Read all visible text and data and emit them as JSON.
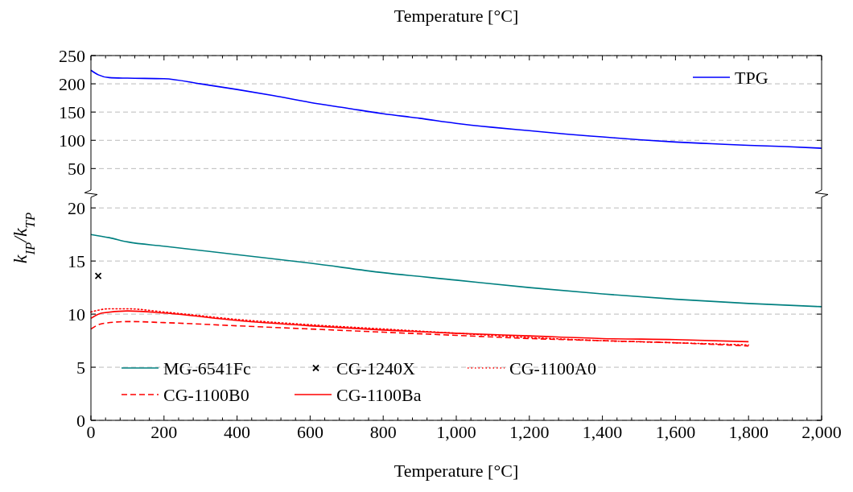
{
  "chart_data": [
    {
      "type": "line",
      "x2label": "Temperature [°C]",
      "xlim": [
        0,
        2000
      ],
      "xticks": [
        0,
        200,
        400,
        600,
        800,
        1000,
        1200,
        1400,
        1600,
        1800,
        2000
      ],
      "ylim": [
        12,
        250
      ],
      "yticks": [
        50,
        100,
        150,
        200,
        250
      ],
      "tick_labels": "y",
      "grid": "y",
      "legend": "top right",
      "line_style": "solid",
      "series": [
        {
          "name": "TPG",
          "color": "#0000ff",
          "x": [
            0,
            20,
            50,
            100,
            200,
            300,
            400,
            500,
            600,
            700,
            800,
            900,
            1000,
            1100,
            1200,
            1300,
            1400,
            1500,
            1600,
            1700,
            1800,
            1900,
            2000
          ],
          "values": [
            224,
            216,
            211,
            210,
            209,
            200,
            190,
            179,
            167,
            157,
            147,
            139,
            130,
            123,
            117,
            111,
            106,
            101,
            97,
            94,
            91,
            89,
            86
          ]
        }
      ]
    },
    {
      "type": "line",
      "xlabel": "Temperature [°C]",
      "ylabel": "k$_{IP}$/k$_{TP}$",
      "xlim": [
        0,
        2000
      ],
      "xticks": [
        {
          "value": 0,
          "label": "0"
        },
        {
          "value": 200,
          "label": "200"
        },
        {
          "value": 400,
          "label": "400"
        },
        {
          "value": 600,
          "label": "600"
        },
        {
          "value": 800,
          "label": "800"
        },
        {
          "value": 1000,
          "label": "1,000"
        },
        {
          "value": 1200,
          "label": "1,200"
        },
        {
          "value": 1400,
          "label": "1,400"
        },
        {
          "value": 1600,
          "label": "1,600"
        },
        {
          "value": 1800,
          "label": "1,800"
        },
        {
          "value": 2000,
          "label": "2,000"
        }
      ],
      "ylim": [
        0,
        21
      ],
      "yticks": [
        0,
        5,
        10,
        15,
        20
      ],
      "grid": "y",
      "legend": "bottom left",
      "series": [
        {
          "name": "MG-6541Fc",
          "color": "#008080",
          "line_style": "solid",
          "x": [
            0,
            50,
            100,
            200,
            400,
            600,
            800,
            1000,
            1200,
            1400,
            1600,
            1800,
            2000
          ],
          "values": [
            17.5,
            17.2,
            16.8,
            16.4,
            15.6,
            14.8,
            13.9,
            13.2,
            12.5,
            11.9,
            11.4,
            11.0,
            10.7
          ]
        },
        {
          "name": "CG-1240X",
          "type": "scatter",
          "marker": "cross",
          "color": "#000000",
          "x": [
            20
          ],
          "values": [
            13.6
          ]
        },
        {
          "name": "CG-1100A0",
          "color": "#ff0000",
          "line_style": "dotted",
          "x": [
            0,
            50,
            100,
            200,
            400,
            600,
            800,
            1000,
            1200,
            1400,
            1600,
            1800
          ],
          "values": [
            10.2,
            10.5,
            10.5,
            10.2,
            9.5,
            9.0,
            8.6,
            8.2,
            7.8,
            7.5,
            7.3,
            7.1
          ]
        },
        {
          "name": "CG-1100B0",
          "color": "#ff0000",
          "line_style": "dashed",
          "x": [
            0,
            30,
            100,
            200,
            400,
            600,
            800,
            1000,
            1200,
            1400,
            1600,
            1800
          ],
          "values": [
            8.6,
            9.1,
            9.3,
            9.2,
            8.9,
            8.6,
            8.3,
            8.0,
            7.7,
            7.5,
            7.3,
            7.0
          ]
        },
        {
          "name": "CG-1100Ba",
          "color": "#ff0000",
          "line_style": "solid",
          "x": [
            0,
            30,
            100,
            200,
            400,
            600,
            800,
            1000,
            1200,
            1400,
            1600,
            1800
          ],
          "values": [
            9.6,
            10.1,
            10.3,
            10.1,
            9.4,
            8.9,
            8.5,
            8.2,
            7.95,
            7.7,
            7.6,
            7.4
          ]
        }
      ]
    }
  ]
}
